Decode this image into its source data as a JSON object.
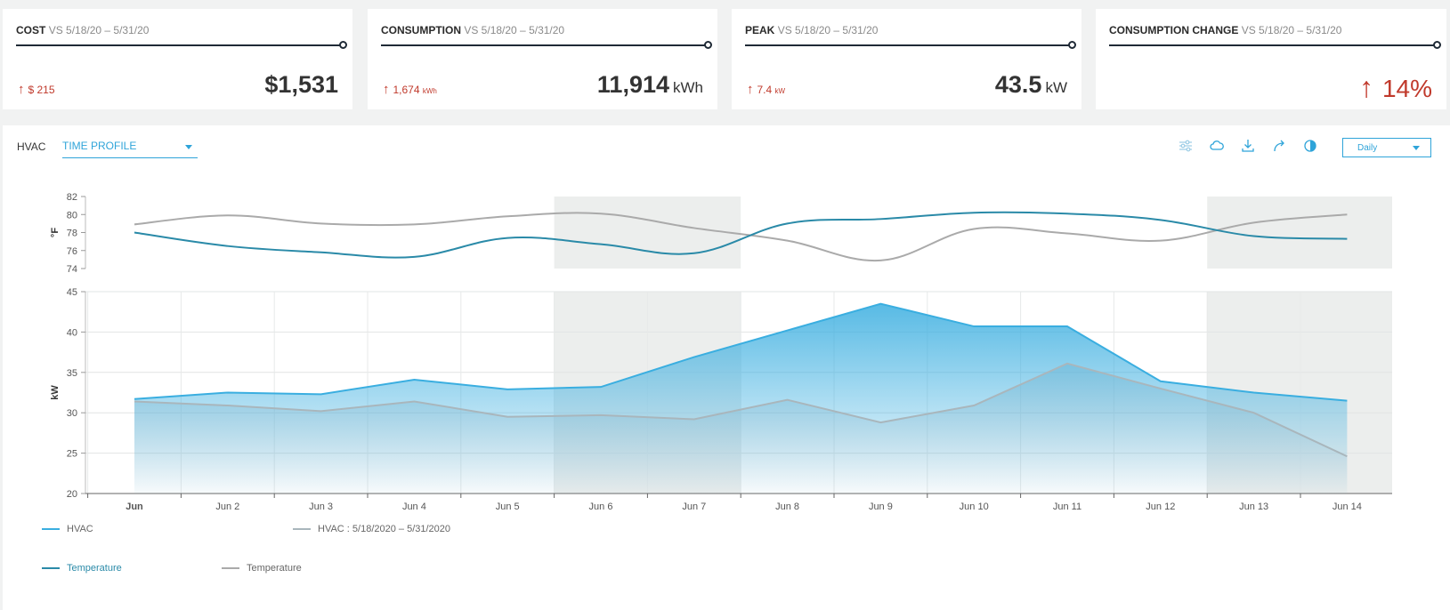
{
  "kpis": [
    {
      "title": "COST",
      "comparison": "VS 5/18/20 – 5/31/20",
      "delta_arrow": "↑",
      "delta_value": "$ 215",
      "delta_unit": "",
      "value": "$1,531",
      "unit": ""
    },
    {
      "title": "CONSUMPTION",
      "comparison": "VS 5/18/20 – 5/31/20",
      "delta_arrow": "↑",
      "delta_value": "1,674",
      "delta_unit": "kWh",
      "value": "11,914",
      "unit": "kWh"
    },
    {
      "title": "PEAK",
      "comparison": "VS 5/18/20 – 5/31/20",
      "delta_arrow": "↑",
      "delta_value": "7.4",
      "delta_unit": "kW",
      "value": "43.5",
      "unit": "kW"
    },
    {
      "title": "CONSUMPTION CHANGE",
      "comparison": "VS 5/18/20 – 5/31/20",
      "arrow": "↑",
      "value": "14%"
    }
  ],
  "panel": {
    "label": "HVAC",
    "profile_select": "TIME PROFILE",
    "period_select": "Daily",
    "tool_icons": [
      "filter-sliders-icon",
      "weather-icon",
      "download-icon",
      "share-icon",
      "contrast-icon"
    ]
  },
  "colors": {
    "accent": "#2fa4d9",
    "hvac": "#3aaee0",
    "hvac_compare": "#a9b6bc",
    "temperature": "#2a8aa8",
    "temperature_compare": "#aaaaaa",
    "weekend_shade": "#eceeed",
    "negative": "#c0392b"
  },
  "chart_data": [
    {
      "type": "line",
      "ylabel": "°F",
      "ylim": [
        74,
        82
      ],
      "yticks": [
        74,
        76,
        78,
        80,
        82
      ],
      "categories": [
        "Jun",
        "Jun 2",
        "Jun 3",
        "Jun 4",
        "Jun 5",
        "Jun 6",
        "Jun 7",
        "Jun 8",
        "Jun 9",
        "Jun 10",
        "Jun 11",
        "Jun 12",
        "Jun 13",
        "Jun 14"
      ],
      "shaded_ranges": [
        [
          "Jun 6",
          "Jun 7"
        ],
        [
          "Jun 13",
          "Jun 14"
        ]
      ],
      "series": [
        {
          "legend": "Temperature",
          "values": [
            78.0,
            76.5,
            75.8,
            75.3,
            77.4,
            76.7,
            75.7,
            79.0,
            79.5,
            80.2,
            80.1,
            79.4,
            77.6,
            77.3
          ]
        },
        {
          "legend": "Temperature",
          "values": [
            78.9,
            79.9,
            79.0,
            78.9,
            79.8,
            80.1,
            78.5,
            77.1,
            74.9,
            78.4,
            77.9,
            77.1,
            79.1,
            80.0
          ]
        }
      ]
    },
    {
      "type": "area",
      "ylabel": "kW",
      "ylim": [
        20,
        45
      ],
      "yticks": [
        20,
        25,
        30,
        35,
        40,
        45
      ],
      "categories": [
        "Jun",
        "Jun 2",
        "Jun 3",
        "Jun 4",
        "Jun 5",
        "Jun 6",
        "Jun 7",
        "Jun 8",
        "Jun 9",
        "Jun 10",
        "Jun 11",
        "Jun 12",
        "Jun 13",
        "Jun 14"
      ],
      "shaded_ranges": [
        [
          "Jun 6",
          "Jun 7"
        ],
        [
          "Jun 13",
          "Jun 14"
        ]
      ],
      "grid": true,
      "series": [
        {
          "legend": "HVAC",
          "values": [
            31.7,
            32.5,
            32.3,
            34.1,
            32.9,
            33.2,
            36.9,
            40.2,
            43.5,
            40.7,
            40.7,
            33.9,
            32.5,
            31.5
          ]
        },
        {
          "legend": "HVAC : 5/18/2020 – 5/31/2020",
          "values": [
            31.4,
            30.9,
            30.2,
            31.4,
            29.5,
            29.7,
            29.2,
            31.6,
            28.8,
            30.9,
            36.1,
            33.0,
            30.0,
            24.6
          ]
        }
      ]
    }
  ]
}
